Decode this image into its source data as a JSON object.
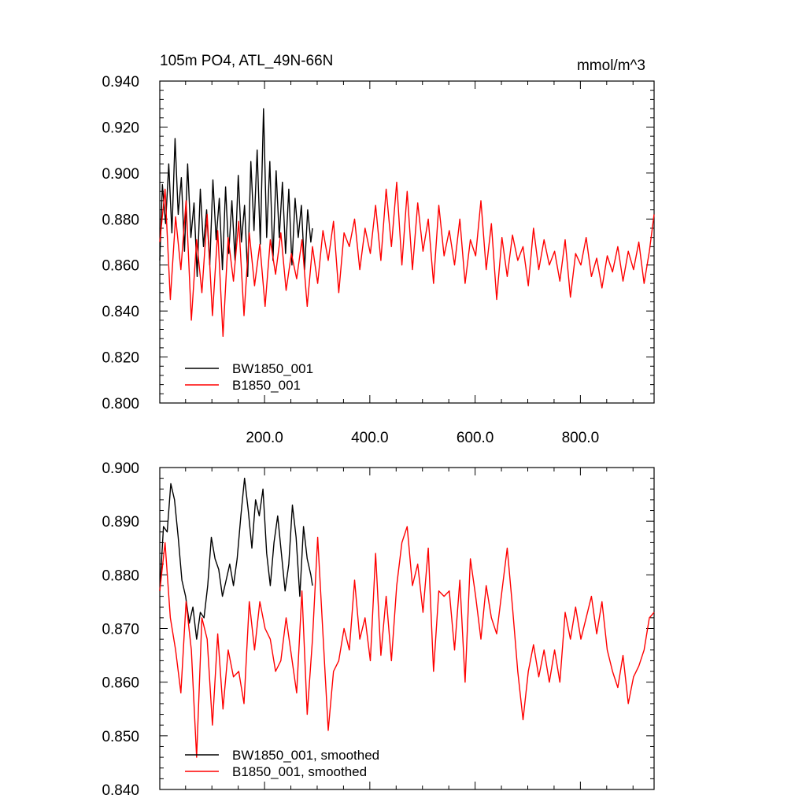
{
  "page": {
    "title": "105m PO4, ATL_49N-66N",
    "units": "mmol/m^3"
  },
  "chart_data": [
    {
      "type": "line",
      "title": "105m PO4, ATL_49N-66N",
      "units": "mmol/m^3",
      "xlim": [
        1,
        940
      ],
      "ylim": [
        0.8,
        0.94
      ],
      "x_ticks": [
        200,
        400,
        600,
        800
      ],
      "x_tick_labels": [
        "200.0",
        "400.0",
        "600.0",
        "800.0"
      ],
      "y_ticks": [
        0.8,
        0.82,
        0.84,
        0.86,
        0.88,
        0.9,
        0.92,
        0.94
      ],
      "y_tick_labels": [
        "0.800",
        "0.820",
        "0.840",
        "0.860",
        "0.880",
        "0.900",
        "0.920",
        "0.940"
      ],
      "legend_position": "bottom-left",
      "series": [
        {
          "name": "BW1850_001",
          "color": "#000000",
          "x": [
            1,
            6,
            12,
            18,
            24,
            30,
            36,
            42,
            48,
            54,
            60,
            66,
            72,
            78,
            84,
            90,
            96,
            102,
            108,
            114,
            120,
            126,
            132,
            138,
            144,
            150,
            156,
            162,
            168,
            174,
            180,
            186,
            192,
            198,
            204,
            210,
            216,
            222,
            228,
            234,
            240,
            246,
            252,
            258,
            264,
            270,
            276,
            282,
            288,
            291
          ],
          "values": [
            0.862,
            0.895,
            0.878,
            0.904,
            0.874,
            0.915,
            0.882,
            0.898,
            0.866,
            0.904,
            0.872,
            0.887,
            0.855,
            0.893,
            0.868,
            0.884,
            0.86,
            0.897,
            0.871,
            0.889,
            0.858,
            0.894,
            0.865,
            0.888,
            0.862,
            0.899,
            0.87,
            0.886,
            0.855,
            0.905,
            0.875,
            0.91,
            0.869,
            0.928,
            0.872,
            0.905,
            0.862,
            0.901,
            0.872,
            0.896,
            0.865,
            0.893,
            0.86,
            0.889,
            0.872,
            0.886,
            0.858,
            0.884,
            0.87,
            0.876
          ]
        },
        {
          "name": "B1850_001",
          "color": "#ff0000",
          "x": [
            1,
            11,
            21,
            31,
            41,
            51,
            61,
            71,
            81,
            91,
            101,
            111,
            121,
            131,
            141,
            151,
            161,
            171,
            181,
            191,
            201,
            211,
            221,
            231,
            241,
            251,
            261,
            271,
            281,
            291,
            301,
            311,
            321,
            331,
            341,
            351,
            361,
            371,
            381,
            391,
            401,
            411,
            421,
            431,
            441,
            451,
            461,
            471,
            481,
            491,
            501,
            511,
            521,
            531,
            541,
            551,
            561,
            571,
            581,
            591,
            601,
            611,
            621,
            631,
            641,
            651,
            661,
            671,
            681,
            691,
            701,
            711,
            721,
            731,
            741,
            751,
            761,
            771,
            781,
            791,
            801,
            811,
            821,
            831,
            841,
            851,
            861,
            871,
            881,
            891,
            901,
            911,
            921,
            931,
            940
          ],
          "values": [
            0.87,
            0.893,
            0.845,
            0.881,
            0.858,
            0.888,
            0.836,
            0.871,
            0.848,
            0.882,
            0.838,
            0.875,
            0.829,
            0.872,
            0.853,
            0.879,
            0.838,
            0.874,
            0.851,
            0.869,
            0.842,
            0.871,
            0.856,
            0.874,
            0.849,
            0.865,
            0.854,
            0.871,
            0.842,
            0.868,
            0.852,
            0.875,
            0.862,
            0.879,
            0.848,
            0.874,
            0.868,
            0.88,
            0.858,
            0.876,
            0.865,
            0.886,
            0.862,
            0.893,
            0.868,
            0.896,
            0.86,
            0.892,
            0.858,
            0.887,
            0.866,
            0.88,
            0.852,
            0.886,
            0.864,
            0.875,
            0.86,
            0.88,
            0.852,
            0.871,
            0.864,
            0.888,
            0.858,
            0.878,
            0.845,
            0.872,
            0.855,
            0.873,
            0.862,
            0.868,
            0.851,
            0.876,
            0.858,
            0.871,
            0.86,
            0.866,
            0.853,
            0.871,
            0.846,
            0.865,
            0.86,
            0.872,
            0.855,
            0.863,
            0.85,
            0.864,
            0.857,
            0.868,
            0.853,
            0.866,
            0.858,
            0.87,
            0.852,
            0.866,
            0.882
          ]
        }
      ]
    },
    {
      "type": "line",
      "xlim": [
        1,
        940
      ],
      "ylim": [
        0.84,
        0.9
      ],
      "y_ticks": [
        0.84,
        0.85,
        0.86,
        0.87,
        0.88,
        0.89,
        0.9
      ],
      "y_tick_labels": [
        "0.840",
        "0.850",
        "0.860",
        "0.870",
        "0.880",
        "0.890",
        "0.900"
      ],
      "legend_position": "bottom-left",
      "series": [
        {
          "name": "BW1850_001, smoothed",
          "color": "#000000",
          "x": [
            1,
            8,
            15,
            22,
            29,
            36,
            43,
            50,
            57,
            64,
            71,
            78,
            85,
            92,
            99,
            106,
            113,
            120,
            127,
            134,
            141,
            148,
            155,
            162,
            169,
            176,
            183,
            190,
            197,
            204,
            211,
            218,
            225,
            232,
            239,
            246,
            253,
            260,
            267,
            274,
            281,
            288,
            291
          ],
          "values": [
            0.877,
            0.889,
            0.888,
            0.897,
            0.894,
            0.887,
            0.879,
            0.876,
            0.871,
            0.874,
            0.868,
            0.873,
            0.872,
            0.878,
            0.887,
            0.883,
            0.881,
            0.876,
            0.879,
            0.882,
            0.878,
            0.883,
            0.891,
            0.898,
            0.892,
            0.885,
            0.894,
            0.891,
            0.896,
            0.884,
            0.878,
            0.886,
            0.891,
            0.884,
            0.877,
            0.882,
            0.893,
            0.887,
            0.876,
            0.889,
            0.883,
            0.88,
            0.878
          ]
        },
        {
          "name": "B1850_001, smoothed",
          "color": "#ff0000",
          "x": [
            1,
            11,
            21,
            31,
            41,
            51,
            61,
            71,
            81,
            91,
            101,
            111,
            121,
            131,
            141,
            151,
            161,
            171,
            181,
            191,
            201,
            211,
            221,
            231,
            241,
            251,
            261,
            271,
            281,
            291,
            301,
            311,
            321,
            331,
            341,
            351,
            361,
            371,
            381,
            391,
            401,
            411,
            421,
            431,
            441,
            451,
            461,
            471,
            481,
            491,
            501,
            511,
            521,
            531,
            541,
            551,
            561,
            571,
            581,
            591,
            601,
            611,
            621,
            631,
            641,
            651,
            661,
            671,
            681,
            691,
            701,
            711,
            721,
            731,
            741,
            751,
            761,
            771,
            781,
            791,
            801,
            811,
            821,
            831,
            841,
            851,
            861,
            871,
            881,
            891,
            901,
            911,
            921,
            931,
            940
          ],
          "values": [
            0.877,
            0.886,
            0.872,
            0.866,
            0.858,
            0.875,
            0.866,
            0.846,
            0.872,
            0.868,
            0.852,
            0.869,
            0.855,
            0.866,
            0.861,
            0.862,
            0.856,
            0.875,
            0.866,
            0.875,
            0.87,
            0.868,
            0.862,
            0.864,
            0.872,
            0.865,
            0.858,
            0.877,
            0.854,
            0.868,
            0.887,
            0.869,
            0.851,
            0.862,
            0.864,
            0.87,
            0.866,
            0.879,
            0.868,
            0.872,
            0.864,
            0.884,
            0.865,
            0.876,
            0.864,
            0.878,
            0.886,
            0.889,
            0.878,
            0.882,
            0.873,
            0.885,
            0.862,
            0.877,
            0.876,
            0.877,
            0.866,
            0.879,
            0.86,
            0.883,
            0.876,
            0.868,
            0.878,
            0.872,
            0.869,
            0.877,
            0.885,
            0.874,
            0.862,
            0.853,
            0.862,
            0.867,
            0.861,
            0.866,
            0.86,
            0.866,
            0.86,
            0.873,
            0.868,
            0.874,
            0.868,
            0.872,
            0.876,
            0.869,
            0.875,
            0.866,
            0.862,
            0.859,
            0.865,
            0.856,
            0.861,
            0.863,
            0.866,
            0.872,
            0.873
          ]
        }
      ]
    }
  ]
}
